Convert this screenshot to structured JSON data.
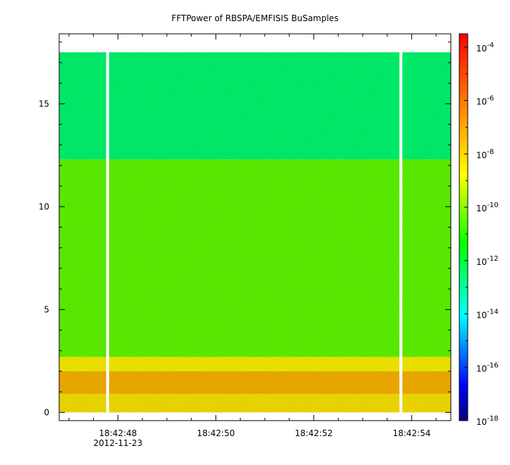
{
  "chart_data": {
    "type": "heatmap",
    "title": "FFTPower of RBSPA/EMFISIS  BuSamples",
    "xlabel": "",
    "ylabel": "",
    "x_ticks": [
      {
        "value": 48,
        "label": "18:42:48"
      },
      {
        "value": 50,
        "label": "18:42:50"
      },
      {
        "value": 52,
        "label": "18:42:52"
      },
      {
        "value": 54,
        "label": "18:42:54"
      }
    ],
    "x_date_label": "2012-11-23",
    "xlim": [
      46.8,
      54.8
    ],
    "y_ticks": [
      0,
      5,
      10,
      15
    ],
    "ylim": [
      -0.4,
      18.4
    ],
    "data_xrange": [
      46.8,
      54.8
    ],
    "data_yrange": [
      0,
      17.5
    ],
    "gaps": [
      {
        "start": 47.76,
        "end": 47.82
      },
      {
        "start": 53.75,
        "end": 53.81
      }
    ],
    "bands": [
      {
        "ymin": 0.0,
        "ymax": 0.9,
        "log10_power": -8.3
      },
      {
        "ymin": 0.9,
        "ymax": 2.0,
        "log10_power": -7.3
      },
      {
        "ymin": 2.0,
        "ymax": 2.7,
        "log10_power": -8.6
      },
      {
        "ymin": 2.7,
        "ymax": 12.3,
        "log10_power": -10.4
      },
      {
        "ymin": 12.3,
        "ymax": 17.5,
        "log10_power": -12.6
      }
    ],
    "colorbar": {
      "scale": "log",
      "range": [
        -18,
        -3.5
      ],
      "ticks": [
        {
          "exp": -4,
          "label": "10",
          "sup": "-4"
        },
        {
          "exp": -6,
          "label": "10",
          "sup": "-6"
        },
        {
          "exp": -8,
          "label": "10",
          "sup": "-8"
        },
        {
          "exp": -10,
          "label": "10",
          "sup": "-10"
        },
        {
          "exp": -12,
          "label": "10",
          "sup": "-12"
        },
        {
          "exp": -14,
          "label": "10",
          "sup": "-14"
        },
        {
          "exp": -16,
          "label": "10",
          "sup": "-16"
        },
        {
          "exp": -18,
          "label": "10",
          "sup": "-18"
        }
      ],
      "colormap": [
        "#00007f",
        "#0000ff",
        "#007fff",
        "#00ffff",
        "#00ff7f",
        "#00ff00",
        "#7fff00",
        "#ffff00",
        "#ffbf00",
        "#ff7f00",
        "#ff3f00",
        "#ff0000"
      ]
    },
    "grid": false,
    "legend": "none"
  }
}
